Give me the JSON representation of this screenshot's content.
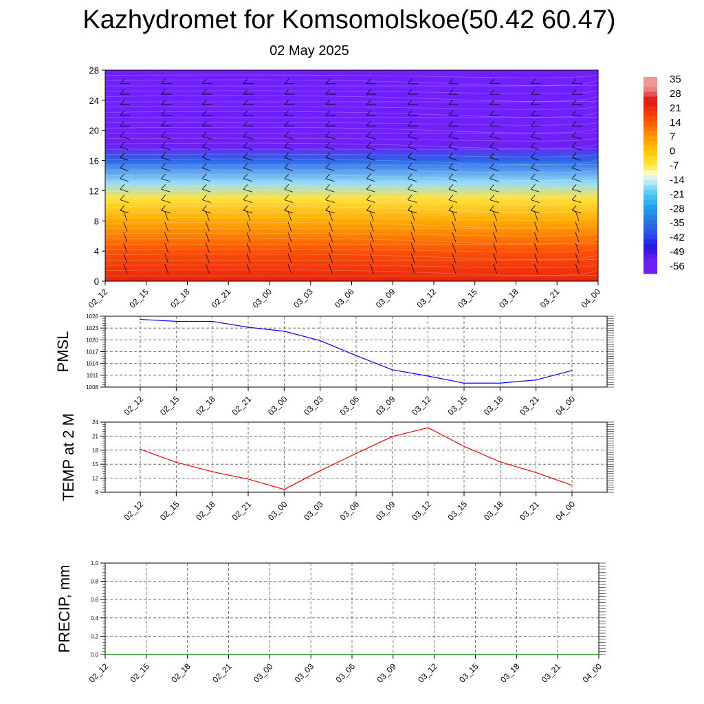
{
  "header": {
    "title": "Kazhydromet for Komsomolskoe(50.42 60.47)",
    "subtitle": "02 May 2025"
  },
  "chart_data": [
    {
      "type": "heatmap",
      "name": "upper-air-cross-section",
      "x_ticks": [
        "02_12",
        "02_15",
        "02_18",
        "02_21",
        "03_00",
        "03_03",
        "03_06",
        "03_09",
        "03_12",
        "03_15",
        "03_18",
        "03_21",
        "04_00"
      ],
      "y_ticks": [
        0,
        4,
        8,
        12,
        16,
        20,
        24,
        28
      ],
      "ylim": [
        0,
        28
      ],
      "colorbar": {
        "labels": [
          35,
          28,
          21,
          14,
          7,
          0,
          -7,
          -14,
          -21,
          -28,
          -35,
          -42,
          -49,
          -56
        ]
      },
      "temperature_profile": [
        {
          "level": 0,
          "value": 25
        },
        {
          "level": 4,
          "value": 18
        },
        {
          "level": 8,
          "value": 6
        },
        {
          "level": 11,
          "value": -5
        },
        {
          "level": 13,
          "value": -17
        },
        {
          "level": 16,
          "value": -38
        },
        {
          "level": 18,
          "value": -58
        },
        {
          "level": 20,
          "value": -62
        },
        {
          "level": 24,
          "value": -64
        },
        {
          "level": 28,
          "value": -62
        }
      ]
    },
    {
      "type": "line",
      "name": "pmsl",
      "ylabel": "PMSL",
      "x": [
        "02_12",
        "02_15",
        "02_18",
        "02_21",
        "03_00",
        "03_03",
        "03_06",
        "03_09",
        "03_12",
        "03_15",
        "03_18",
        "03_21",
        "04_00"
      ],
      "y_ticks": [
        1008,
        1011,
        1014,
        1017,
        1020,
        1023,
        1026
      ],
      "ylim": [
        1008,
        1026
      ],
      "series": [
        {
          "values": [
            1025.2,
            1024.7,
            1024.7,
            1023.2,
            1022.2,
            1019.8,
            1016.0,
            1012.4,
            1010.8,
            1009.0,
            1009.0,
            1009.8,
            1012.2
          ],
          "color": "#0000ff"
        }
      ]
    },
    {
      "type": "line",
      "name": "temp-2m",
      "ylabel": "TEMP at 2 M",
      "x": [
        "02_12",
        "02_15",
        "02_18",
        "02_21",
        "03_00",
        "03_03",
        "03_06",
        "03_09",
        "03_12",
        "03_15",
        "03_18",
        "03_21",
        "04_00"
      ],
      "y_ticks": [
        9,
        12,
        15,
        18,
        21,
        24
      ],
      "ylim": [
        9,
        24
      ],
      "series": [
        {
          "values": [
            18.2,
            15.4,
            13.4,
            11.8,
            9.6,
            13.6,
            17.3,
            20.9,
            22.8,
            18.8,
            15.5,
            13.2,
            10.5
          ],
          "color": "#ff0000"
        }
      ]
    },
    {
      "type": "line",
      "name": "precip",
      "ylabel": "PRECIP, mm",
      "x_ticks": [
        "02_12",
        "02_15",
        "02_18",
        "02_21",
        "03_00",
        "03_03",
        "03_06",
        "03_09",
        "03_12",
        "03_15",
        "03_18",
        "03_21",
        "04_00"
      ],
      "y_ticks": [
        "0.0",
        "0.2",
        "0.4",
        "0.6",
        "0.8",
        "1.0"
      ],
      "ylim": [
        0,
        1
      ],
      "series": [
        {
          "values": [
            0,
            0,
            0,
            0,
            0,
            0,
            0,
            0,
            0,
            0,
            0,
            0,
            0
          ],
          "color": "#008000"
        }
      ]
    }
  ]
}
